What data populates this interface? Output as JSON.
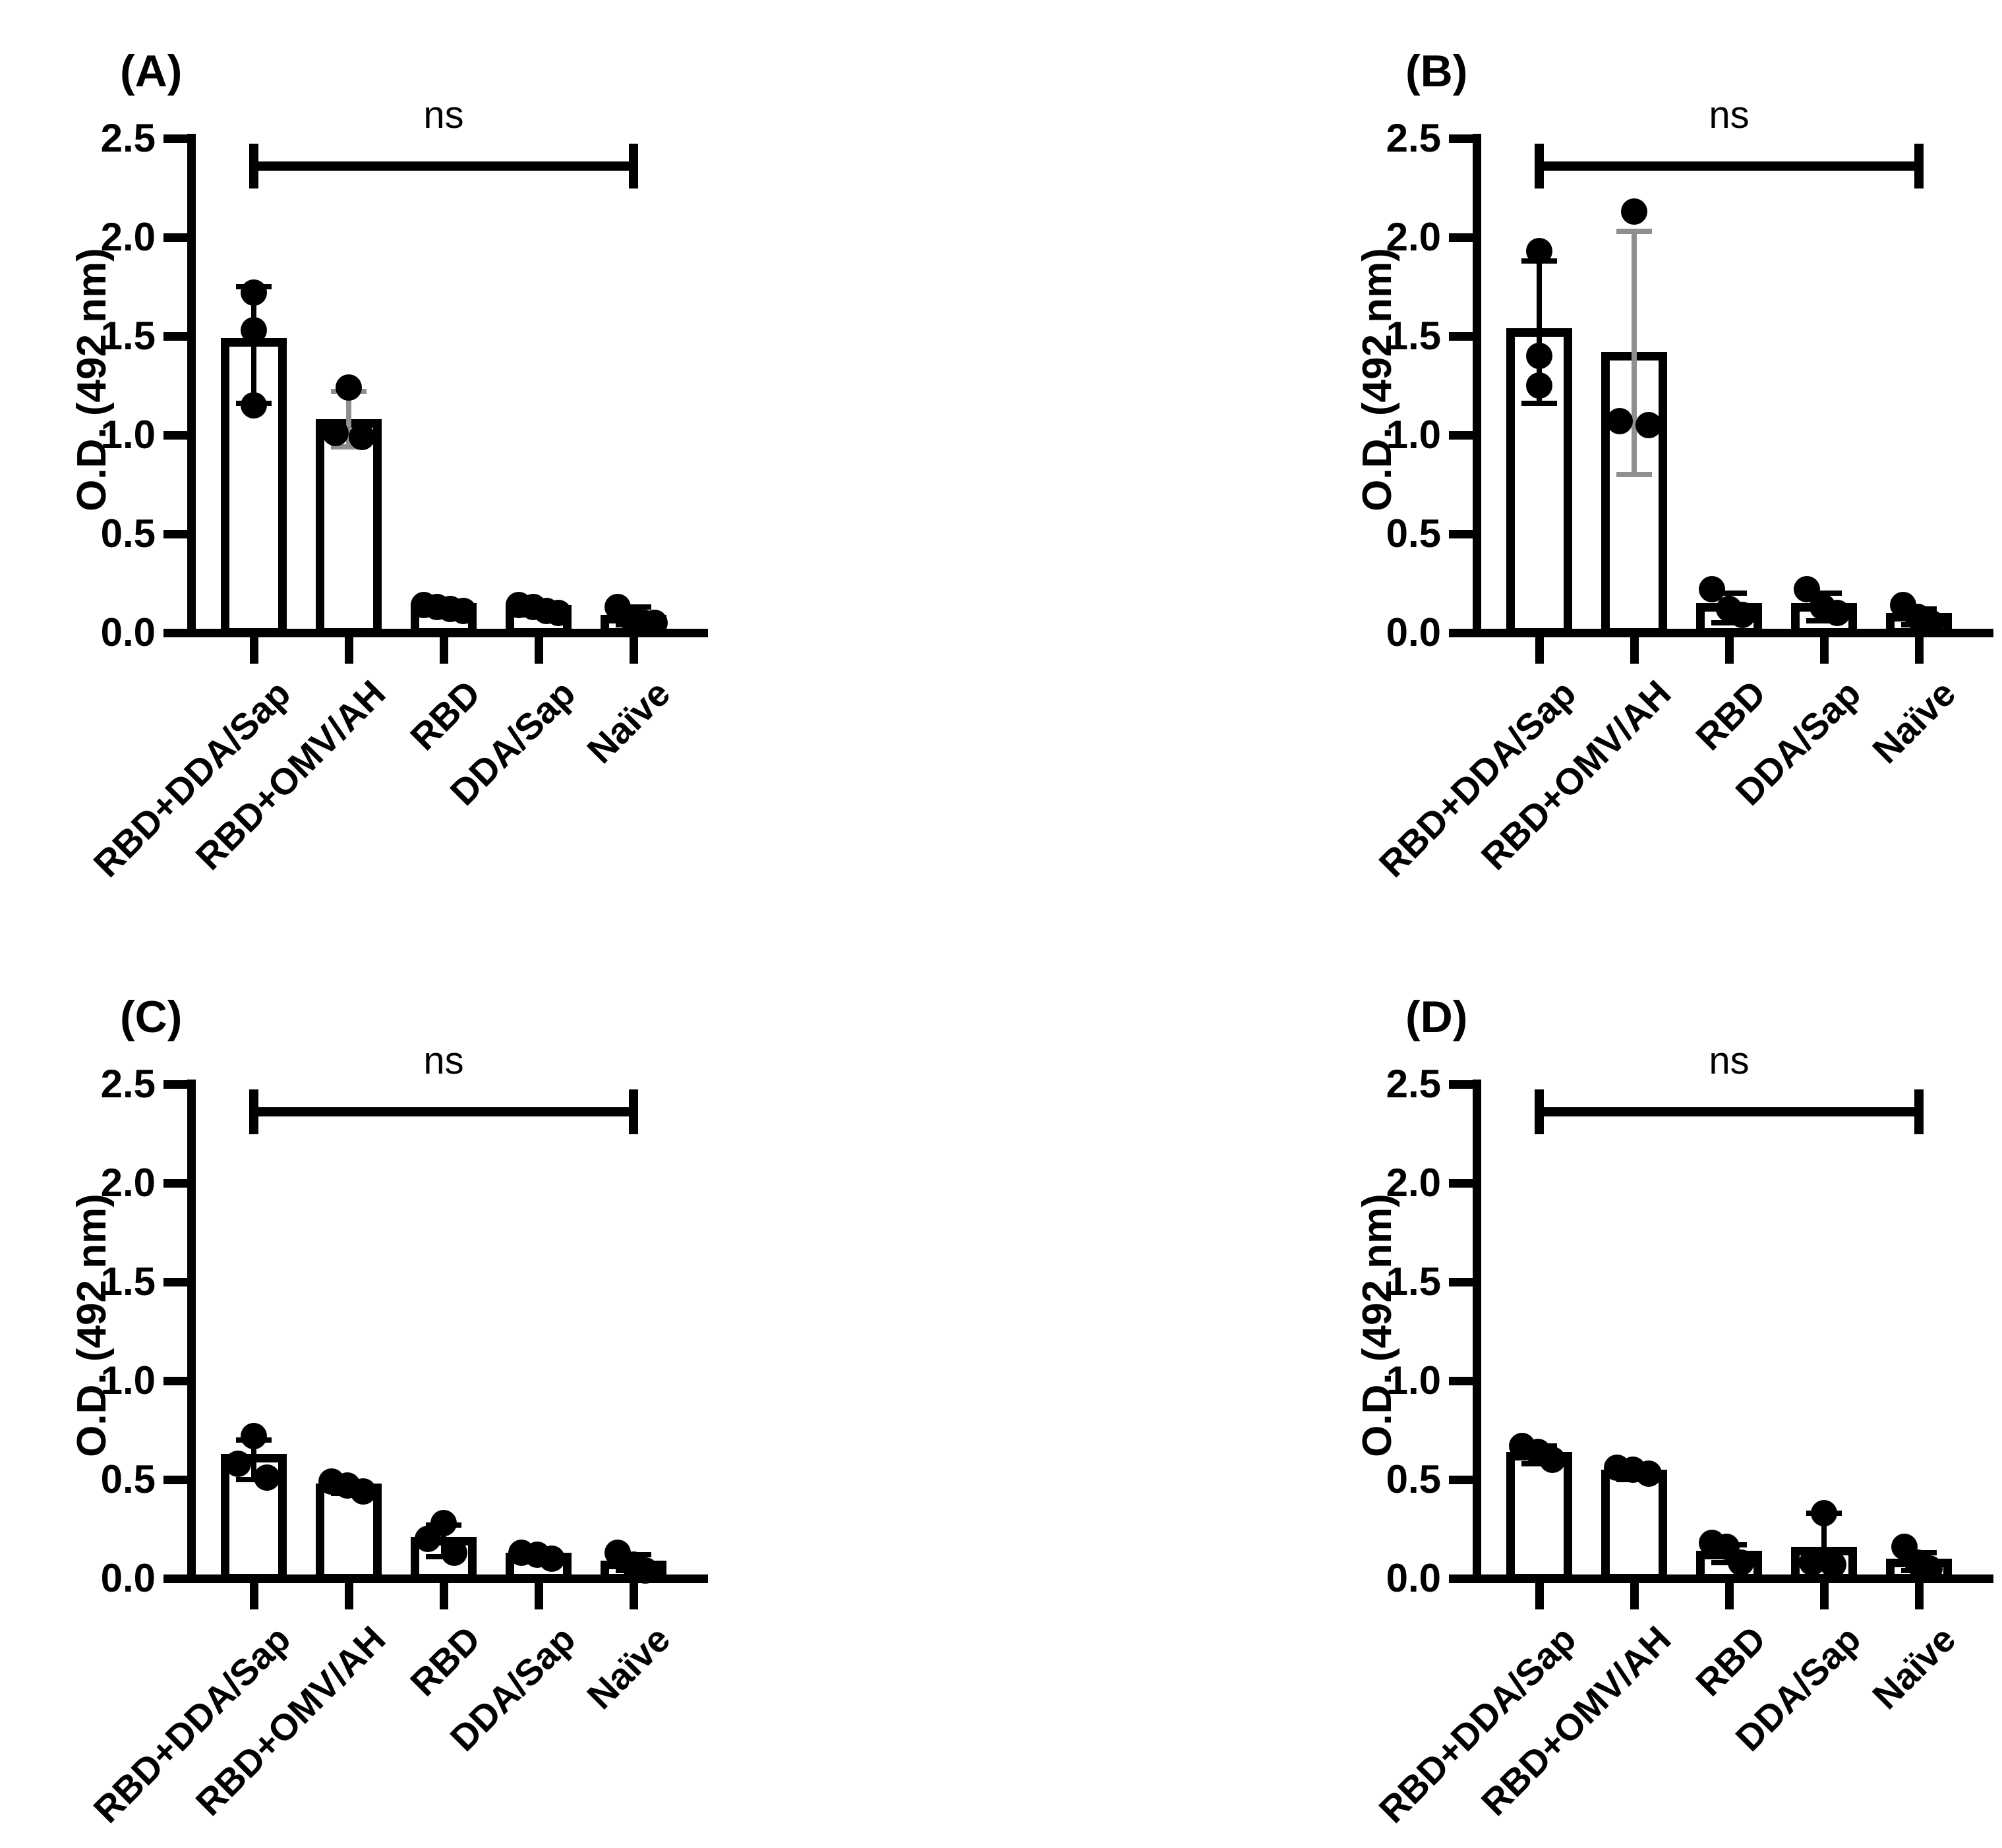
{
  "figure": {
    "background": "#ffffff"
  },
  "colors": {
    "ink": "#000000",
    "bar_fill": "#ffffff",
    "gray_error": "#8f8f8f"
  },
  "chart_data": [
    {
      "type": "bar",
      "panel_label": "(A)",
      "ylabel": "O.D. (492 nm)",
      "ylim": [
        0,
        2.5
      ],
      "yticks": [
        "0.0",
        "0.5",
        "1.0",
        "1.5",
        "2.0",
        "2.5"
      ],
      "grid": false,
      "categories": [
        "RBD+DDA/Sap",
        "RBD+OMV/AH",
        "RBD",
        "DDA/Sap",
        "Naïve"
      ],
      "bars": [
        {
          "label": "RBD+DDA/Sap",
          "mean": 1.47,
          "err_low": 1.16,
          "err_high": 1.75,
          "gray_error": false,
          "points": [
            {
              "dx": 0,
              "v": 1.72
            },
            {
              "dx": 0,
              "v": 1.53
            },
            {
              "dx": 0,
              "v": 1.15
            }
          ]
        },
        {
          "label": "RBD+OMV/AH",
          "mean": 1.06,
          "err_low": 0.94,
          "err_high": 1.22,
          "gray_error": true,
          "points": [
            {
              "dx": 0,
              "v": 1.24
            },
            {
              "dx": -20,
              "v": 1.01
            },
            {
              "dx": 20,
              "v": 0.99
            }
          ]
        },
        {
          "label": "RBD",
          "mean": 0.13,
          "err_low": 0.1,
          "err_high": 0.16,
          "gray_error": false,
          "points": [
            {
              "dx": -30,
              "v": 0.14
            },
            {
              "dx": -10,
              "v": 0.13
            },
            {
              "dx": 10,
              "v": 0.12
            },
            {
              "dx": 30,
              "v": 0.11
            }
          ]
        },
        {
          "label": "DDA/Sap",
          "mean": 0.12,
          "err_low": 0.09,
          "err_high": 0.15,
          "gray_error": false,
          "points": [
            {
              "dx": -30,
              "v": 0.14
            },
            {
              "dx": -8,
              "v": 0.13
            },
            {
              "dx": 12,
              "v": 0.11
            },
            {
              "dx": 30,
              "v": 0.1
            }
          ]
        },
        {
          "label": "Naïve",
          "mean": 0.07,
          "err_low": 0.04,
          "err_high": 0.13,
          "gray_error": false,
          "points": [
            {
              "dx": -24,
              "v": 0.13
            },
            {
              "dx": -2,
              "v": 0.07
            },
            {
              "dx": 16,
              "v": 0.05
            },
            {
              "dx": 32,
              "v": 0.05
            }
          ]
        }
      ],
      "significance": {
        "label": "ns",
        "from_index": 0,
        "to_index": 4,
        "bracket_y": 2.36
      }
    },
    {
      "type": "bar",
      "panel_label": "(B)",
      "ylabel": "O.D. (492 nm)",
      "ylim": [
        0,
        2.5
      ],
      "yticks": [
        "0.0",
        "0.5",
        "1.0",
        "1.5",
        "2.0",
        "2.5"
      ],
      "grid": false,
      "categories": [
        "RBD+DDA/Sap",
        "RBD+OMV/AH",
        "RBD",
        "DDA/Sap",
        "Naïve"
      ],
      "bars": [
        {
          "label": "RBD+DDA/Sap",
          "mean": 1.52,
          "err_low": 1.16,
          "err_high": 1.88,
          "gray_error": false,
          "points": [
            {
              "dx": 0,
              "v": 1.93
            },
            {
              "dx": 0,
              "v": 1.4
            },
            {
              "dx": 0,
              "v": 1.25
            }
          ]
        },
        {
          "label": "RBD+OMV/AH",
          "mean": 1.4,
          "err_low": 0.8,
          "err_high": 2.03,
          "gray_error": true,
          "points": [
            {
              "dx": 0,
              "v": 2.13
            },
            {
              "dx": -22,
              "v": 1.07
            },
            {
              "dx": 22,
              "v": 1.05
            }
          ]
        },
        {
          "label": "RBD",
          "mean": 0.13,
          "err_low": 0.05,
          "err_high": 0.2,
          "gray_error": false,
          "points": [
            {
              "dx": -26,
              "v": 0.22
            },
            {
              "dx": 0,
              "v": 0.12
            },
            {
              "dx": 20,
              "v": 0.09
            }
          ]
        },
        {
          "label": "DDA/Sap",
          "mean": 0.13,
          "err_low": 0.06,
          "err_high": 0.2,
          "gray_error": false,
          "points": [
            {
              "dx": -26,
              "v": 0.22
            },
            {
              "dx": -2,
              "v": 0.13
            },
            {
              "dx": 20,
              "v": 0.1
            }
          ]
        },
        {
          "label": "Naïve",
          "mean": 0.08,
          "err_low": 0.04,
          "err_high": 0.12,
          "gray_error": false,
          "points": [
            {
              "dx": -24,
              "v": 0.14
            },
            {
              "dx": -2,
              "v": 0.08
            },
            {
              "dx": 18,
              "v": 0.05
            }
          ]
        }
      ],
      "significance": {
        "label": "ns",
        "from_index": 0,
        "to_index": 4,
        "bracket_y": 2.36
      }
    },
    {
      "type": "bar",
      "panel_label": "(C)",
      "ylabel": "O.D. (492 nm)",
      "ylim": [
        0,
        2.5
      ],
      "yticks": [
        "0.0",
        "0.5",
        "1.0",
        "1.5",
        "2.0",
        "2.5"
      ],
      "grid": false,
      "categories": [
        "RBD+DDA/Sap",
        "RBD+OMV/AH",
        "RBD",
        "DDA/Sap",
        "Naïve"
      ],
      "bars": [
        {
          "label": "RBD+DDA/Sap",
          "mean": 0.61,
          "err_low": 0.5,
          "err_high": 0.7,
          "gray_error": false,
          "points": [
            {
              "dx": 0,
              "v": 0.72
            },
            {
              "dx": -24,
              "v": 0.58
            },
            {
              "dx": 20,
              "v": 0.51
            }
          ]
        },
        {
          "label": "RBD+OMV/AH",
          "mean": 0.46,
          "err_low": 0.43,
          "err_high": 0.49,
          "gray_error": false,
          "points": [
            {
              "dx": -26,
              "v": 0.49
            },
            {
              "dx": -2,
              "v": 0.47
            },
            {
              "dx": 22,
              "v": 0.44
            }
          ]
        },
        {
          "label": "RBD",
          "mean": 0.19,
          "err_low": 0.11,
          "err_high": 0.27,
          "gray_error": false,
          "points": [
            {
              "dx": 0,
              "v": 0.28
            },
            {
              "dx": -24,
              "v": 0.2
            },
            {
              "dx": 16,
              "v": 0.13
            }
          ]
        },
        {
          "label": "DDA/Sap",
          "mean": 0.11,
          "err_low": 0.09,
          "err_high": 0.14,
          "gray_error": false,
          "points": [
            {
              "dx": -26,
              "v": 0.13
            },
            {
              "dx": -2,
              "v": 0.12
            },
            {
              "dx": 20,
              "v": 0.1
            }
          ]
        },
        {
          "label": "Naïve",
          "mean": 0.07,
          "err_low": 0.04,
          "err_high": 0.12,
          "gray_error": false,
          "points": [
            {
              "dx": -24,
              "v": 0.13
            },
            {
              "dx": 0,
              "v": 0.07
            },
            {
              "dx": 18,
              "v": 0.04
            }
          ]
        }
      ],
      "significance": {
        "label": "ns",
        "from_index": 0,
        "to_index": 4,
        "bracket_y": 2.36
      }
    },
    {
      "type": "bar",
      "panel_label": "(D)",
      "ylabel": "O.D. (492 nm)",
      "ylim": [
        0,
        2.5
      ],
      "yticks": [
        "0.0",
        "0.5",
        "1.0",
        "1.5",
        "2.0",
        "2.5"
      ],
      "grid": false,
      "categories": [
        "RBD+DDA/Sap",
        "RBD+OMV/AH",
        "RBD",
        "DDA/Sap",
        "Naïve"
      ],
      "bars": [
        {
          "label": "RBD+DDA/Sap",
          "mean": 0.62,
          "err_low": 0.58,
          "err_high": 0.67,
          "gray_error": false,
          "points": [
            {
              "dx": -26,
              "v": 0.67
            },
            {
              "dx": -2,
              "v": 0.64
            },
            {
              "dx": 20,
              "v": 0.6
            }
          ]
        },
        {
          "label": "RBD+OMV/AH",
          "mean": 0.53,
          "err_low": 0.5,
          "err_high": 0.56,
          "gray_error": false,
          "points": [
            {
              "dx": -26,
              "v": 0.56
            },
            {
              "dx": -2,
              "v": 0.55
            },
            {
              "dx": 22,
              "v": 0.53
            }
          ]
        },
        {
          "label": "RBD",
          "mean": 0.12,
          "err_low": 0.08,
          "err_high": 0.17,
          "gray_error": false,
          "points": [
            {
              "dx": -26,
              "v": 0.18
            },
            {
              "dx": -4,
              "v": 0.16
            },
            {
              "dx": 18,
              "v": 0.08
            }
          ]
        },
        {
          "label": "DDA/Sap",
          "mean": 0.14,
          "err_low": 0.05,
          "err_high": 0.33,
          "gray_error": false,
          "points": [
            {
              "dx": 0,
              "v": 0.33
            },
            {
              "dx": -18,
              "v": 0.08
            },
            {
              "dx": 14,
              "v": 0.07
            }
          ]
        },
        {
          "label": "Naïve",
          "mean": 0.08,
          "err_low": 0.04,
          "err_high": 0.13,
          "gray_error": false,
          "points": [
            {
              "dx": -22,
              "v": 0.16
            },
            {
              "dx": -2,
              "v": 0.08
            },
            {
              "dx": 16,
              "v": 0.05
            }
          ]
        }
      ],
      "significance": {
        "label": "ns",
        "from_index": 0,
        "to_index": 4,
        "bracket_y": 2.36
      }
    }
  ]
}
